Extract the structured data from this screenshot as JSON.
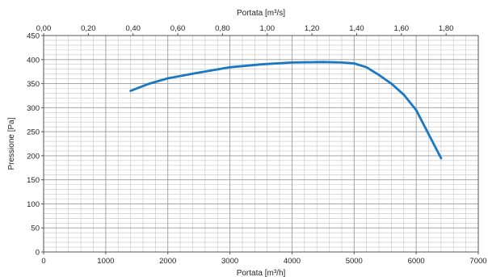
{
  "chart_data": {
    "type": "line",
    "title": "",
    "xlabel": "Portata [m³/h]",
    "x2label": "Portata [m³/s]",
    "ylabel": "Pressione [Pa]",
    "xlim": [
      0,
      7000
    ],
    "x2lim": [
      0,
      1.944
    ],
    "ylim": [
      0,
      450
    ],
    "x_ticks": [
      0,
      1000,
      2000,
      3000,
      4000,
      5000,
      6000,
      7000
    ],
    "x_tick_labels": [
      "0",
      "1000",
      "2000",
      "3000",
      "4000",
      "5000",
      "6000",
      "7000"
    ],
    "x2_ticks": [
      0,
      0.2,
      0.4,
      0.6,
      0.8,
      1.0,
      1.2,
      1.4,
      1.6,
      1.8
    ],
    "x2_tick_labels": [
      "0,00",
      "0,20",
      "0,40",
      "0,60",
      "0,80",
      "1,00",
      "1,20",
      "1,40",
      "1,60",
      "1,80"
    ],
    "y_ticks": [
      0,
      50,
      100,
      150,
      200,
      250,
      300,
      350,
      400,
      450
    ],
    "y_tick_labels": [
      "0",
      "50",
      "100",
      "150",
      "200",
      "250",
      "300",
      "350",
      "400",
      "450"
    ],
    "grid": true,
    "colors": {
      "curve": "#1a78c2",
      "grid_major": "#9a9a9a",
      "grid_minor": "#c4c4c4"
    },
    "series": [
      {
        "x": [
          1400,
          1700,
          2000,
          2500,
          3000,
          3500,
          4000,
          4500,
          4800,
          5000,
          5200,
          5400,
          5600,
          5800,
          6000,
          6100,
          6200,
          6300,
          6400
        ],
        "y": [
          335,
          350,
          361,
          373,
          384,
          390,
          394,
          395,
          394,
          392,
          384,
          368,
          350,
          327,
          295,
          270,
          245,
          220,
          195
        ]
      }
    ]
  }
}
